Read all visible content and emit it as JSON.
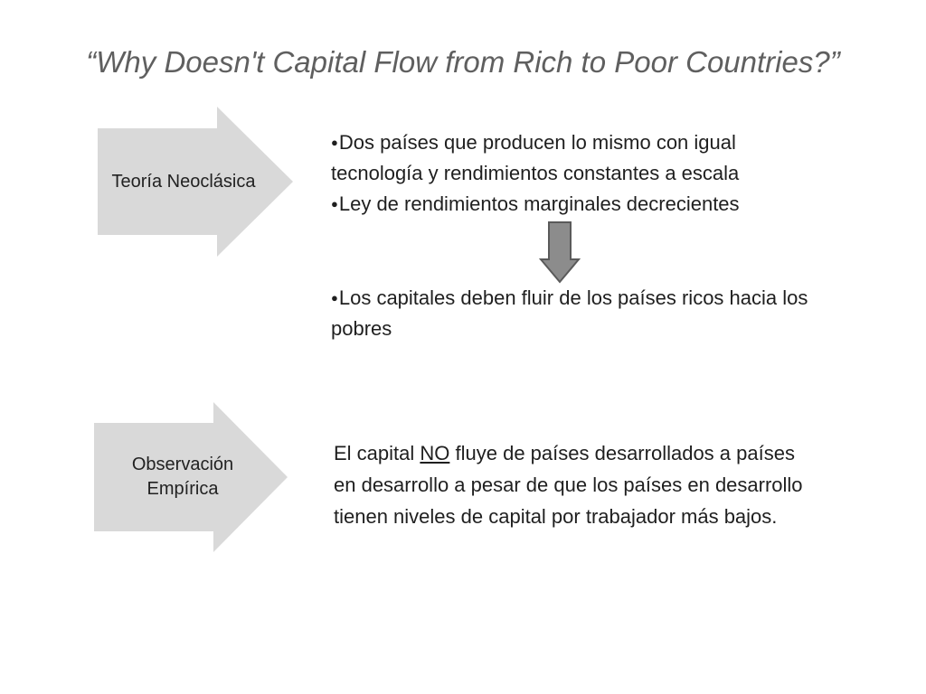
{
  "title": "“Why Doesn't Capital Flow from Rich to Poor Countries?”",
  "section1": {
    "arrow_label": "Teoría Neoclásica",
    "bullets": [
      [
        "Dos países que producen lo mismo con igual",
        "tecnología y rendimientos constantes a escala"
      ],
      [
        "Ley de rendimientos marginales decrecientes"
      ]
    ],
    "conclusion": [
      "Los capitales deben fluir de los países ricos hacia los",
      "pobres"
    ]
  },
  "section2": {
    "arrow_label_line1": "Observación",
    "arrow_label_line2": "Empírica",
    "text": {
      "line1_before": "El capital ",
      "line1_underlined": "NO",
      "line1_after": " fluye de países desarrollados a países",
      "line2": "en desarrollo a pesar de que los países en desarrollo",
      "line3": "tienen niveles de capital por trabajador más bajos."
    }
  },
  "bullet_char": "●",
  "colors": {
    "title": "#5f5f5f",
    "arrow_fill": "#d9d9d9",
    "down_arrow_fill": "#8c8c8c",
    "down_arrow_stroke": "#5a5a5a",
    "text": "#1f1f1f"
  }
}
